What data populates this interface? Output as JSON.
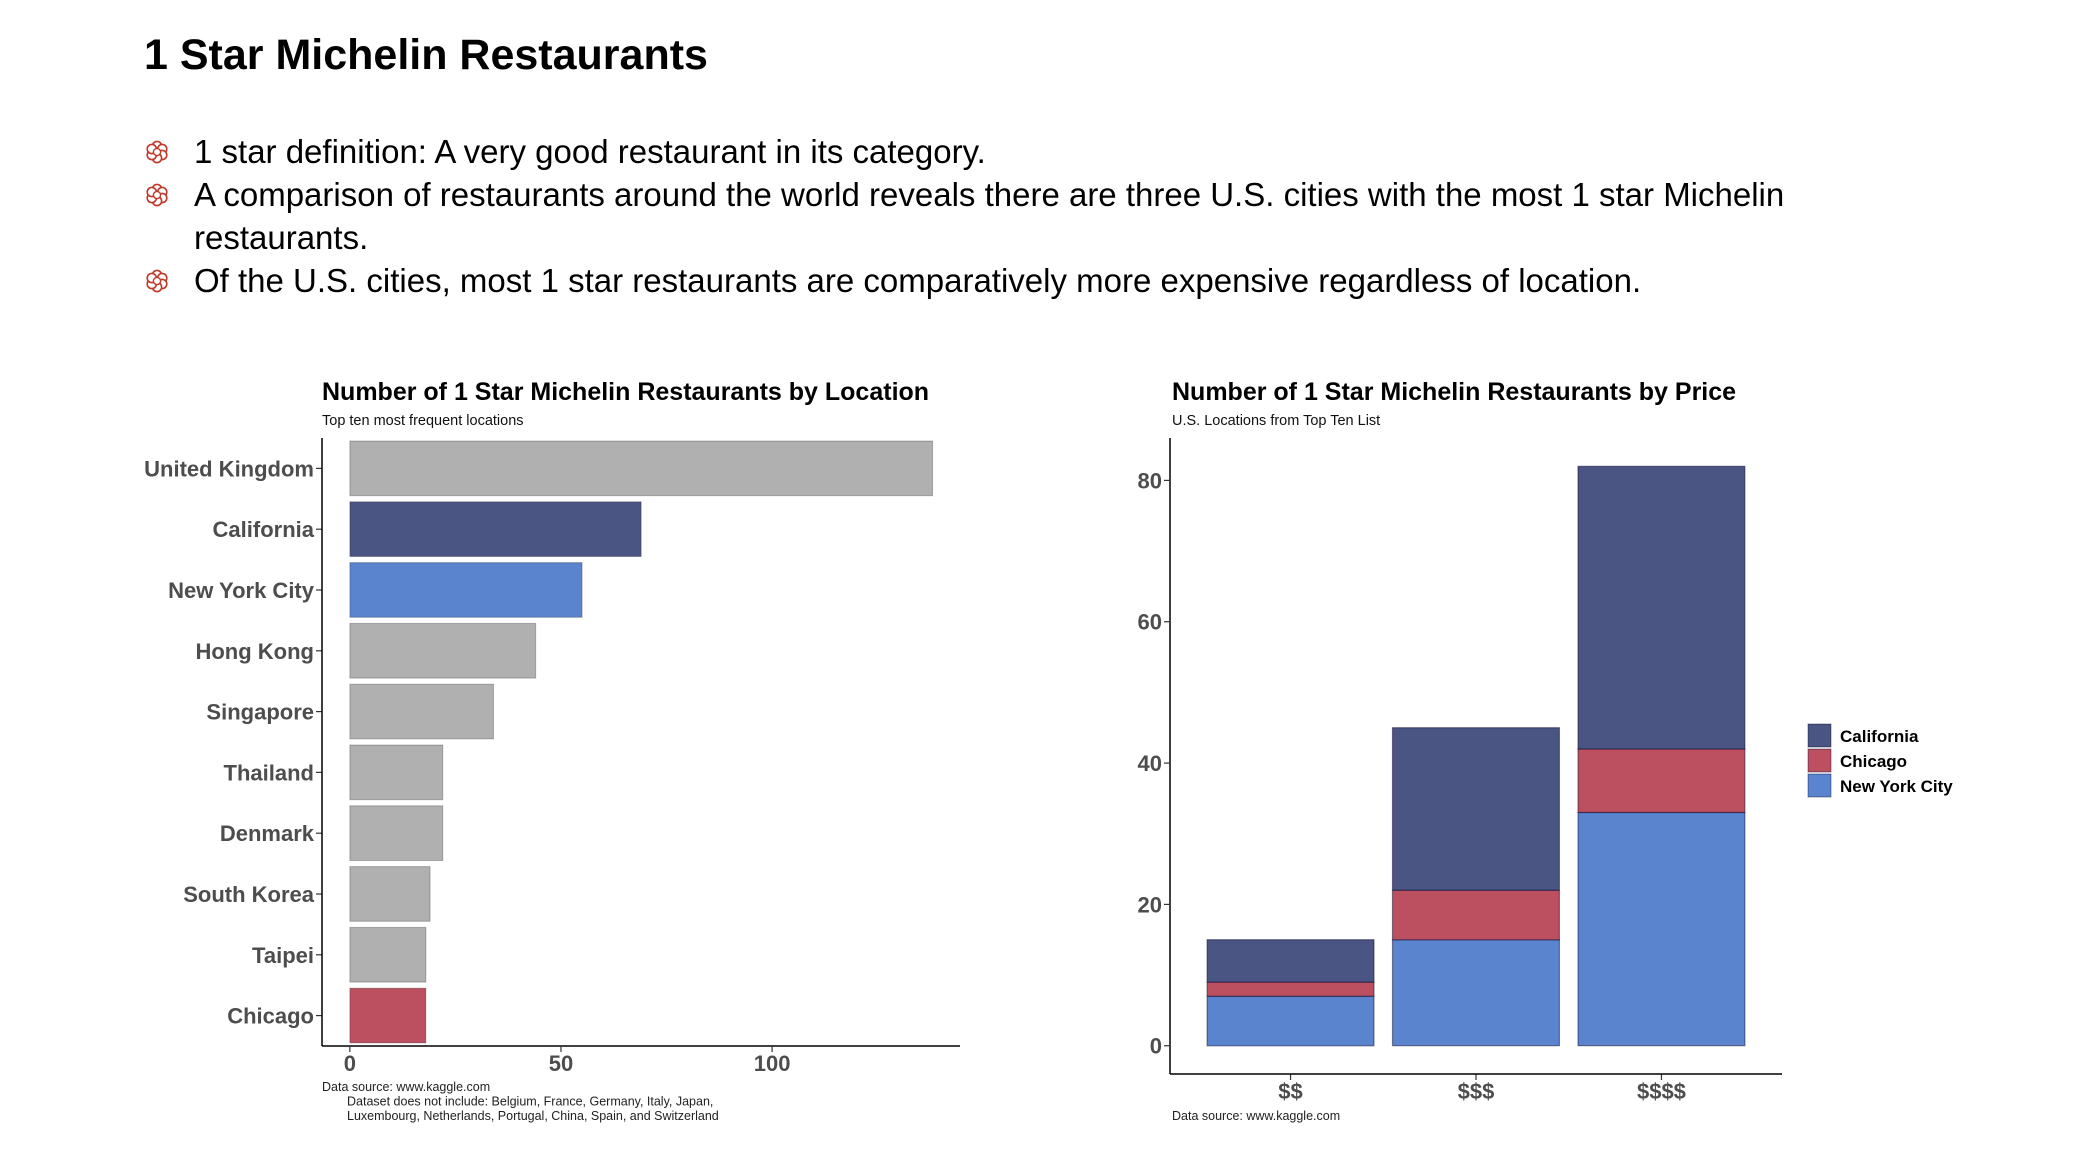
{
  "slide": {
    "title": "1 Star Michelin Restaurants",
    "bullets": [
      "1 star definition: A very good restaurant in its category.",
      "A comparison of restaurants around the world reveals there are three U.S. cities with the most 1 star Michelin restaurants.",
      "Of the U.S. cities, most 1 star restaurants are comparatively more expensive regardless of location."
    ],
    "bullet_icon": "michelin-star-icon",
    "bullet_color": "#c0392b"
  },
  "chart_data": [
    {
      "type": "bar",
      "orientation": "horizontal",
      "title": "Number of 1 Star Michelin Restaurants by Location",
      "subtitle": "Top ten most frequent locations",
      "categories": [
        "United Kingdom",
        "California",
        "New York City",
        "Hong Kong",
        "Singapore",
        "Thailand",
        "Denmark",
        "South Korea",
        "Taipei",
        "Chicago"
      ],
      "values": [
        138,
        69,
        55,
        44,
        34,
        22,
        22,
        19,
        18,
        18
      ],
      "colors": [
        "#b0b0b0",
        "#4a5583",
        "#5b84cf",
        "#b0b0b0",
        "#b0b0b0",
        "#b0b0b0",
        "#b0b0b0",
        "#b0b0b0",
        "#b0b0b0",
        "#bc5061"
      ],
      "xticks": [
        0,
        50,
        100
      ],
      "xlim": [
        -6.6,
        144.5
      ],
      "grid": false,
      "notes": [
        "Data source: www.kaggle.com",
        "Dataset does not include: Belgium, France, Germany, Italy, Japan,",
        "Luxembourg, Netherlands, Portugal, China, Spain, and Switzerland"
      ]
    },
    {
      "type": "bar",
      "stacked": true,
      "title": "Number of 1 Star Michelin Restaurants by Price",
      "subtitle": "U.S. Locations from Top Ten List",
      "categories": [
        "$$",
        "$$$",
        "$$$$"
      ],
      "series": [
        {
          "name": "New York City",
          "values": [
            7,
            15,
            33
          ],
          "color": "#5b84cf"
        },
        {
          "name": "Chicago",
          "values": [
            2,
            7,
            9
          ],
          "color": "#bc5061"
        },
        {
          "name": "California",
          "values": [
            6,
            23,
            40
          ],
          "color": "#4a5583"
        }
      ],
      "legend_order": [
        "California",
        "Chicago",
        "New York City"
      ],
      "legend_position": "right",
      "yticks": [
        0,
        20,
        40,
        60,
        80
      ],
      "ylim": [
        -4,
        86
      ],
      "grid": false,
      "notes": [
        "Data source: www.kaggle.com"
      ]
    }
  ]
}
